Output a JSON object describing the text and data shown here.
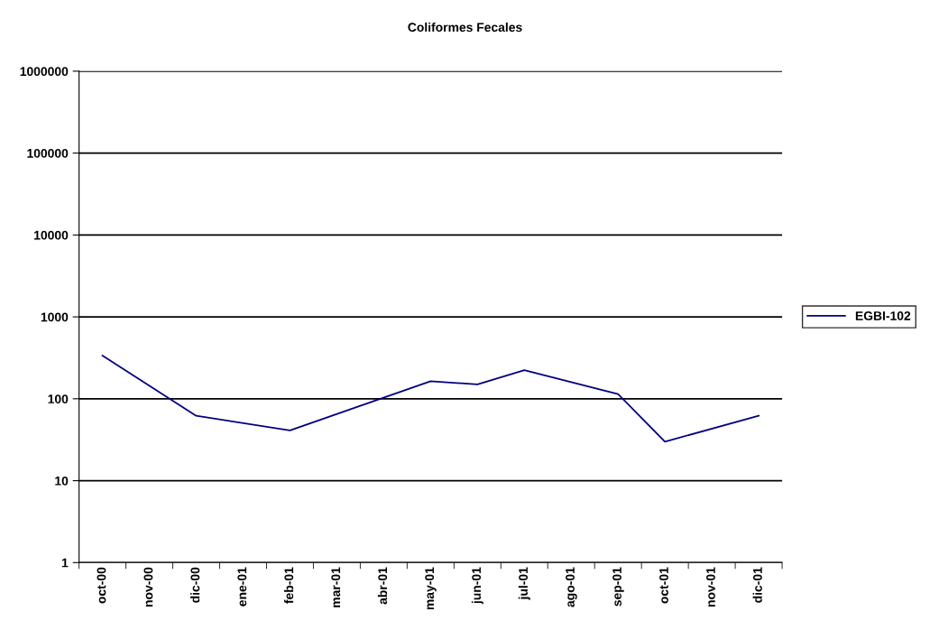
{
  "chart_data": {
    "type": "line",
    "title": "Coliformes Fecales",
    "categories": [
      "oct-00",
      "nov-00",
      "dic-00",
      "ene-01",
      "feb-01",
      "mar-01",
      "abr-01",
      "may-01",
      "jun-01",
      "jul-01",
      "ago-01",
      "sep-01",
      "oct-01",
      "nov-01",
      "dic-01"
    ],
    "series": [
      {
        "name": "EGBI-102",
        "color": "#000080",
        "values": [
          336,
          null,
          62,
          null,
          41,
          null,
          null,
          164,
          150,
          224,
          null,
          114,
          30,
          null,
          62
        ]
      }
    ],
    "log": true,
    "ylim": [
      1,
      1000000
    ],
    "yticks": [
      1,
      10,
      100,
      1000,
      10000,
      100000,
      1000000
    ],
    "grid": "y",
    "legend": "right",
    "marker": "none",
    "line_style": "solid"
  }
}
